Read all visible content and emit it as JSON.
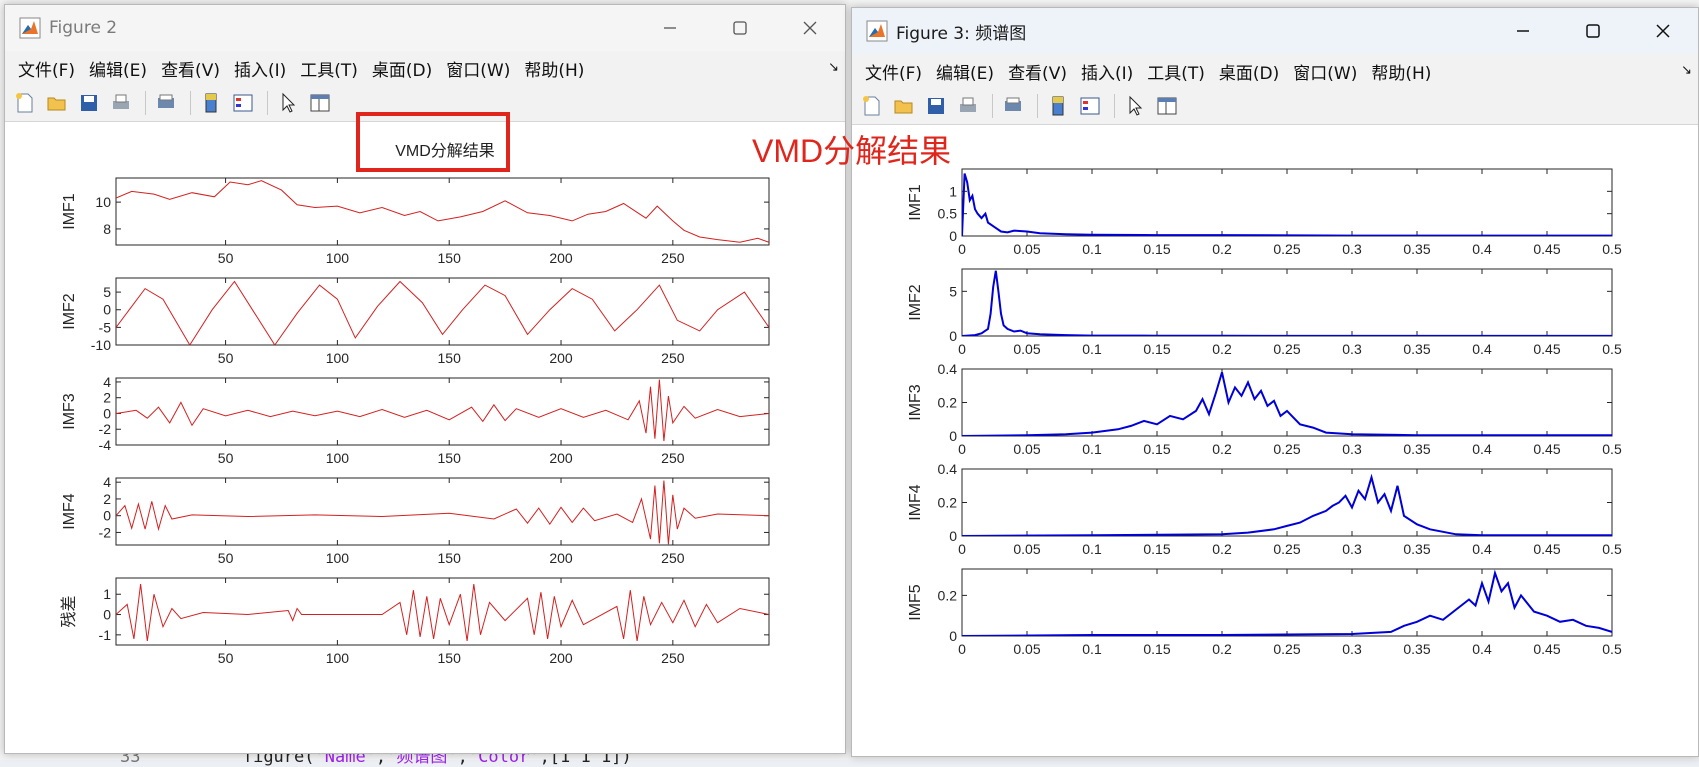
{
  "background": {
    "code_line_number": "33",
    "code_parts": [
      "figure(",
      "'Name'",
      ",",
      "'频谱图'",
      ",",
      "'Color'",
      ",[1 1 1])"
    ]
  },
  "fig2": {
    "title": "Figure 2",
    "menus": [
      "文件(F)",
      "编辑(E)",
      "查看(V)",
      "插入(I)",
      "工具(T)",
      "桌面(D)",
      "窗口(W)",
      "帮助(H)"
    ],
    "toolbar_icons": [
      "new-file-icon",
      "open-folder-icon",
      "save-icon",
      "print-icon",
      "print-preview-icon",
      "colorbar-icon",
      "legend-icon",
      "pointer-icon",
      "property-editor-icon"
    ],
    "plot_title": "VMD分解结果"
  },
  "fig3": {
    "title": "Figure 3: 频谱图",
    "menus": [
      "文件(F)",
      "编辑(E)",
      "查看(V)",
      "插入(I)",
      "工具(T)",
      "桌面(D)",
      "窗口(W)",
      "帮助(H)"
    ],
    "toolbar_icons": [
      "new-file-icon",
      "open-folder-icon",
      "save-icon",
      "print-icon",
      "print-preview-icon",
      "colorbar-icon",
      "legend-icon",
      "pointer-icon",
      "property-editor-icon"
    ]
  },
  "annotation": "VMD分解结果",
  "colors": {
    "fig2_line": "#d42020",
    "fig3_line": "#0000d8",
    "annotation": "#e0261c"
  },
  "chart_data": [
    {
      "type": "line",
      "figure": "Figure 2",
      "ylabel": "IMF1",
      "x_ticks": [
        50,
        100,
        150,
        200,
        250
      ],
      "xlim": [
        1,
        293
      ],
      "y_ticks": [
        8,
        10
      ],
      "ylim": [
        6.8,
        11.8
      ],
      "series": [
        {
          "x": [
            1,
            8,
            18,
            25,
            35,
            45,
            52,
            60,
            66,
            75,
            82,
            90,
            100,
            110,
            120,
            130,
            137,
            145,
            155,
            165,
            175,
            185,
            195,
            205,
            212,
            220,
            228,
            238,
            243,
            250,
            255,
            262,
            270,
            280,
            288,
            293
          ],
          "y": [
            10.3,
            10.8,
            10.6,
            10.2,
            10.7,
            10.4,
            11.5,
            11.3,
            11.6,
            10.9,
            9.8,
            9.6,
            9.7,
            9.2,
            9.6,
            9.0,
            9.3,
            8.6,
            8.9,
            9.3,
            10.1,
            9.2,
            9.0,
            8.6,
            9.1,
            9.3,
            9.9,
            8.8,
            9.7,
            8.6,
            7.9,
            7.4,
            7.2,
            7.0,
            7.3,
            7.0
          ]
        }
      ]
    },
    {
      "type": "line",
      "figure": "Figure 2",
      "ylabel": "IMF2",
      "x_ticks": [
        50,
        100,
        150,
        200,
        250
      ],
      "xlim": [
        1,
        293
      ],
      "y_ticks": [
        -10,
        -5,
        0,
        5
      ],
      "ylim": [
        -10,
        9
      ],
      "series": [
        {
          "x": [
            1,
            14,
            22,
            34,
            44,
            54,
            62,
            72,
            82,
            92,
            100,
            108,
            118,
            128,
            138,
            147,
            156,
            166,
            175,
            185,
            195,
            205,
            214,
            224,
            234,
            244,
            252,
            262,
            270,
            282,
            293
          ],
          "y": [
            -5,
            6,
            3,
            -10,
            0,
            8,
            0,
            -10,
            -1,
            7,
            3,
            -8,
            1,
            8,
            2,
            -7,
            0,
            7,
            4,
            -7,
            0,
            6,
            3,
            -6,
            0,
            7,
            -3,
            -6,
            0,
            5,
            -5
          ]
        }
      ]
    },
    {
      "type": "line",
      "figure": "Figure 2",
      "ylabel": "IMF3",
      "x_ticks": [
        50,
        100,
        150,
        200,
        250
      ],
      "xlim": [
        1,
        293
      ],
      "y_ticks": [
        -4,
        -2,
        0,
        2,
        4
      ],
      "ylim": [
        -4,
        4.5
      ],
      "series": [
        {
          "x": [
            1,
            10,
            15,
            20,
            25,
            30,
            35,
            40,
            50,
            60,
            70,
            80,
            90,
            100,
            110,
            120,
            130,
            140,
            150,
            160,
            165,
            170,
            175,
            180,
            190,
            200,
            210,
            220,
            230,
            235,
            238,
            240,
            242,
            244,
            246,
            248,
            250,
            255,
            260,
            270,
            280,
            293
          ],
          "y": [
            0,
            0.4,
            -0.6,
            0.8,
            -1.2,
            1.4,
            -1.5,
            0.6,
            -0.3,
            0.4,
            -0.4,
            0.3,
            -0.3,
            0.3,
            -0.4,
            0.5,
            -0.5,
            0.4,
            -0.8,
            0.8,
            -1.0,
            1.1,
            -0.9,
            0.6,
            -0.5,
            0.6,
            -0.5,
            0.4,
            -0.8,
            1.6,
            -2.5,
            3.4,
            -3.2,
            4.3,
            -3.5,
            2.2,
            -1.2,
            0.9,
            -0.6,
            0.5,
            -0.4,
            0
          ]
        }
      ]
    },
    {
      "type": "line",
      "figure": "Figure 2",
      "ylabel": "IMF4",
      "x_ticks": [
        50,
        100,
        150,
        200,
        250
      ],
      "xlim": [
        1,
        293
      ],
      "y_ticks": [
        -2,
        0,
        2,
        4
      ],
      "ylim": [
        -3.5,
        4.5
      ],
      "series": [
        {
          "x": [
            1,
            5,
            8,
            11,
            14,
            17,
            20,
            23,
            26,
            35,
            60,
            90,
            120,
            150,
            170,
            180,
            185,
            190,
            195,
            200,
            205,
            210,
            215,
            225,
            232,
            236,
            240,
            242,
            244,
            246,
            248,
            250,
            252,
            255,
            260,
            270,
            293
          ],
          "y": [
            0,
            1.2,
            -1.5,
            1.4,
            -1.6,
            1.7,
            -1.6,
            1.2,
            -0.4,
            0.1,
            -0.1,
            0.1,
            -0.1,
            0.3,
            -0.4,
            0.8,
            -0.9,
            0.9,
            -1.0,
            1.0,
            -0.8,
            0.9,
            -0.6,
            0.2,
            -0.8,
            2.0,
            -2.8,
            3.6,
            -3.3,
            4.2,
            -3.4,
            2.5,
            -1.6,
            0.9,
            -0.3,
            0.2,
            0
          ]
        }
      ]
    },
    {
      "type": "line",
      "figure": "Figure 2",
      "ylabel": "残差",
      "x_ticks": [
        50,
        100,
        150,
        200,
        250
      ],
      "xlim": [
        1,
        293
      ],
      "y_ticks": [
        -1,
        0,
        1
      ],
      "ylim": [
        -1.5,
        1.8
      ],
      "series": [
        {
          "x": [
            1,
            6,
            9,
            12,
            15,
            18,
            22,
            26,
            30,
            40,
            60,
            78,
            80,
            82,
            84,
            100,
            120,
            128,
            131,
            134,
            137,
            140,
            143,
            146,
            150,
            155,
            158,
            161,
            164,
            168,
            175,
            185,
            188,
            191,
            194,
            197,
            200,
            205,
            210,
            225,
            228,
            231,
            234,
            237,
            240,
            245,
            250,
            255,
            260,
            265,
            270,
            280,
            293
          ],
          "y": [
            0,
            0.5,
            -1.2,
            1.5,
            -1.3,
            1.0,
            -0.6,
            0.3,
            -0.2,
            0.1,
            0,
            0.2,
            -0.3,
            0.3,
            0,
            0,
            0,
            0.6,
            -1.0,
            1.2,
            -1.1,
            0.9,
            -1.2,
            0.8,
            -0.5,
            1.0,
            -1.3,
            1.5,
            -1.0,
            0.6,
            -0.3,
            0.8,
            -1.0,
            1.1,
            -1.2,
            0.9,
            -0.6,
            0.7,
            -0.5,
            0.4,
            -1.2,
            1.2,
            -1.3,
            0.9,
            -0.5,
            0.6,
            -0.4,
            0.7,
            -0.6,
            0.5,
            -0.4,
            0.3,
            0
          ]
        }
      ]
    },
    {
      "type": "line",
      "figure": "Figure 3",
      "ylabel": "IMF1",
      "x_ticks": [
        0,
        0.05,
        0.1,
        0.15,
        0.2,
        0.25,
        0.3,
        0.35,
        0.4,
        0.45,
        0.5
      ],
      "xlim": [
        0,
        0.5
      ],
      "y_ticks": [
        0,
        0.5,
        1
      ],
      "ylim": [
        0,
        1.5
      ],
      "series": [
        {
          "x": [
            0,
            0.002,
            0.004,
            0.006,
            0.008,
            0.01,
            0.012,
            0.015,
            0.018,
            0.02,
            0.025,
            0.03,
            0.035,
            0.04,
            0.05,
            0.06,
            0.08,
            0.1,
            0.15,
            0.2,
            0.3,
            0.4,
            0.5
          ],
          "y": [
            0,
            1.4,
            1.2,
            0.8,
            0.9,
            0.6,
            0.5,
            0.4,
            0.5,
            0.3,
            0.2,
            0.1,
            0.08,
            0.12,
            0.1,
            0.06,
            0.04,
            0.03,
            0.02,
            0.02,
            0.01,
            0.01,
            0.01
          ]
        }
      ]
    },
    {
      "type": "line",
      "figure": "Figure 3",
      "ylabel": "IMF2",
      "x_ticks": [
        0,
        0.05,
        0.1,
        0.15,
        0.2,
        0.25,
        0.3,
        0.35,
        0.4,
        0.45,
        0.5
      ],
      "xlim": [
        0,
        0.5
      ],
      "y_ticks": [
        0,
        5
      ],
      "ylim": [
        0,
        7.5
      ],
      "series": [
        {
          "x": [
            0,
            0.01,
            0.015,
            0.02,
            0.022,
            0.024,
            0.026,
            0.028,
            0.03,
            0.032,
            0.035,
            0.04,
            0.045,
            0.05,
            0.06,
            0.08,
            0.1,
            0.15,
            0.2,
            0.3,
            0.5
          ],
          "y": [
            0,
            0.1,
            0.3,
            0.8,
            2.5,
            5.5,
            7.3,
            5.0,
            2.5,
            1.2,
            0.8,
            0.5,
            0.6,
            0.3,
            0.2,
            0.1,
            0.05,
            0.03,
            0.02,
            0.01,
            0.01
          ]
        }
      ]
    },
    {
      "type": "line",
      "figure": "Figure 3",
      "ylabel": "IMF3",
      "x_ticks": [
        0,
        0.05,
        0.1,
        0.15,
        0.2,
        0.25,
        0.3,
        0.35,
        0.4,
        0.45,
        0.5
      ],
      "xlim": [
        0,
        0.5
      ],
      "y_ticks": [
        0,
        0.2,
        0.4
      ],
      "ylim": [
        0,
        0.4
      ],
      "series": [
        {
          "x": [
            0,
            0.05,
            0.08,
            0.1,
            0.12,
            0.13,
            0.14,
            0.15,
            0.16,
            0.17,
            0.18,
            0.185,
            0.19,
            0.195,
            0.2,
            0.205,
            0.21,
            0.215,
            0.22,
            0.225,
            0.23,
            0.235,
            0.24,
            0.245,
            0.25,
            0.26,
            0.27,
            0.28,
            0.3,
            0.35,
            0.5
          ],
          "y": [
            0,
            0.005,
            0.01,
            0.02,
            0.04,
            0.06,
            0.09,
            0.07,
            0.12,
            0.1,
            0.15,
            0.22,
            0.13,
            0.25,
            0.38,
            0.2,
            0.29,
            0.24,
            0.32,
            0.22,
            0.27,
            0.18,
            0.21,
            0.12,
            0.15,
            0.07,
            0.05,
            0.02,
            0.01,
            0.005,
            0.005
          ]
        }
      ]
    },
    {
      "type": "line",
      "figure": "Figure 3",
      "ylabel": "IMF4",
      "x_ticks": [
        0,
        0.05,
        0.1,
        0.15,
        0.2,
        0.25,
        0.3,
        0.35,
        0.4,
        0.45,
        0.5
      ],
      "xlim": [
        0,
        0.5
      ],
      "y_ticks": [
        0,
        0.2,
        0.4
      ],
      "ylim": [
        0,
        0.4
      ],
      "series": [
        {
          "x": [
            0,
            0.1,
            0.2,
            0.22,
            0.24,
            0.25,
            0.26,
            0.27,
            0.28,
            0.285,
            0.29,
            0.295,
            0.3,
            0.305,
            0.31,
            0.315,
            0.32,
            0.325,
            0.33,
            0.335,
            0.34,
            0.35,
            0.36,
            0.38,
            0.4,
            0.5
          ],
          "y": [
            0,
            0.005,
            0.01,
            0.02,
            0.04,
            0.06,
            0.08,
            0.12,
            0.15,
            0.18,
            0.2,
            0.24,
            0.17,
            0.27,
            0.22,
            0.35,
            0.2,
            0.25,
            0.15,
            0.3,
            0.12,
            0.07,
            0.04,
            0.01,
            0.005,
            0.005
          ]
        }
      ]
    },
    {
      "type": "line",
      "figure": "Figure 3",
      "ylabel": "IMF5",
      "x_ticks": [
        0,
        0.05,
        0.1,
        0.15,
        0.2,
        0.25,
        0.3,
        0.35,
        0.4,
        0.45,
        0.5
      ],
      "xlim": [
        0,
        0.5
      ],
      "y_ticks": [
        0,
        0.2
      ],
      "ylim": [
        0,
        0.33
      ],
      "series": [
        {
          "x": [
            0,
            0.1,
            0.2,
            0.3,
            0.33,
            0.34,
            0.35,
            0.36,
            0.37,
            0.38,
            0.39,
            0.395,
            0.4,
            0.405,
            0.41,
            0.415,
            0.42,
            0.425,
            0.43,
            0.44,
            0.45,
            0.46,
            0.47,
            0.48,
            0.49,
            0.5
          ],
          "y": [
            0,
            0.005,
            0.005,
            0.01,
            0.02,
            0.05,
            0.07,
            0.1,
            0.08,
            0.13,
            0.18,
            0.15,
            0.26,
            0.17,
            0.31,
            0.22,
            0.26,
            0.14,
            0.2,
            0.12,
            0.1,
            0.07,
            0.08,
            0.05,
            0.04,
            0.02
          ]
        }
      ]
    }
  ]
}
